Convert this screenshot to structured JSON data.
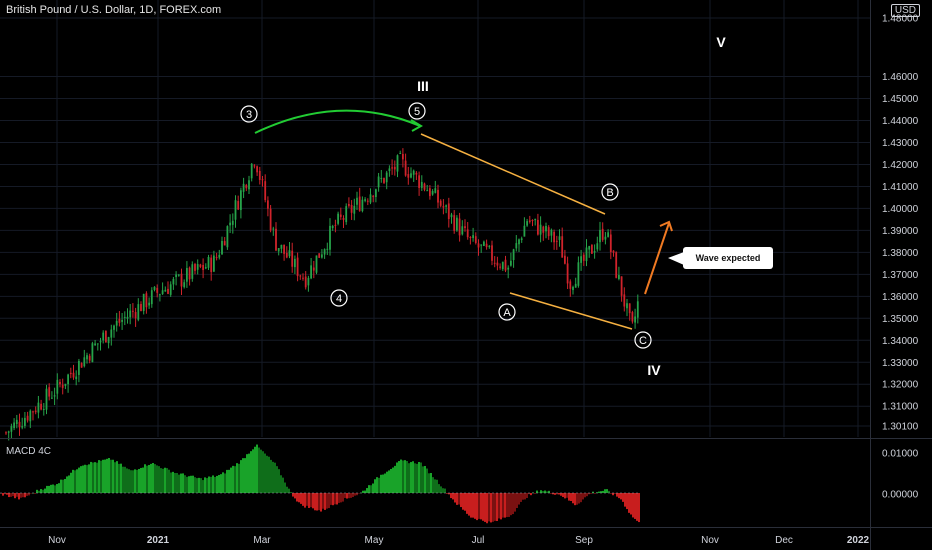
{
  "header": {
    "title": "British Pound / U.S. Dollar, 1D, FOREX.com",
    "currency": "USD"
  },
  "macd_panel": {
    "label": "MACD 4C",
    "ticks": [
      "0.01000",
      "0.00000"
    ]
  },
  "chart_data": {
    "type": "candlestick",
    "title": "British Pound / U.S. Dollar, 1D, FOREX.com",
    "y_ticks": [
      "1.30100",
      "1.31000",
      "1.32000",
      "1.33000",
      "1.34000",
      "1.35000",
      "1.36000",
      "1.37000",
      "1.38000",
      "1.39000",
      "1.40000",
      "1.41000",
      "1.42000",
      "1.43000",
      "1.44000",
      "1.45000",
      "1.46000",
      "1.48000"
    ],
    "x_ticks": [
      "Nov",
      "2021",
      "Mar",
      "May",
      "Jul",
      "Sep",
      "Nov",
      "Dec",
      "2022"
    ],
    "ylim": [
      1.298,
      1.476
    ],
    "price_path": [
      {
        "x": "Oct 2020",
        "y": 1.298
      },
      {
        "x": "Nov 2020",
        "y": 1.318
      },
      {
        "x": "Dec 2020",
        "y": 1.345
      },
      {
        "x": "2021",
        "y": 1.362
      },
      {
        "x": "Feb 2021",
        "y": 1.376
      },
      {
        "x": "late Feb 2021",
        "y": 1.424
      },
      {
        "x": "Mar 2021",
        "y": 1.385
      },
      {
        "x": "Apr 2021",
        "y": 1.368
      },
      {
        "x": "late Apr 2021",
        "y": 1.392
      },
      {
        "x": "late May 2021",
        "y": 1.421
      },
      {
        "x": "Jun 2021",
        "y": 1.408
      },
      {
        "x": "late Jun 2021",
        "y": 1.385
      },
      {
        "x": "Jul 2021",
        "y": 1.373
      },
      {
        "x": "late Jul 2021",
        "y": 1.395
      },
      {
        "x": "Aug 2021",
        "y": 1.384
      },
      {
        "x": "late Aug 2021",
        "y": 1.366
      },
      {
        "x": "Sep 2021",
        "y": 1.391
      },
      {
        "x": "late Sep 2021",
        "y": 1.344
      },
      {
        "x": "end Sep 2021",
        "y": 1.357
      }
    ],
    "annotations": {
      "waves": [
        "III",
        "IV",
        "V"
      ],
      "impulse_labels": [
        "3",
        "4",
        "5"
      ],
      "correction_labels": [
        "A",
        "B",
        "C"
      ],
      "callout": "Wave expected"
    },
    "colors": {
      "up": "#26a34a",
      "down": "#d0232b",
      "macd_up_strong": "#19a329",
      "macd_up_weak": "#0f6e1a",
      "macd_down_strong": "#c81e1e",
      "macd_down_weak": "#7a1111",
      "channel": "#f5b041",
      "arc": "#22cc33",
      "projection": "#f07a22",
      "grid": "#151a26"
    }
  }
}
